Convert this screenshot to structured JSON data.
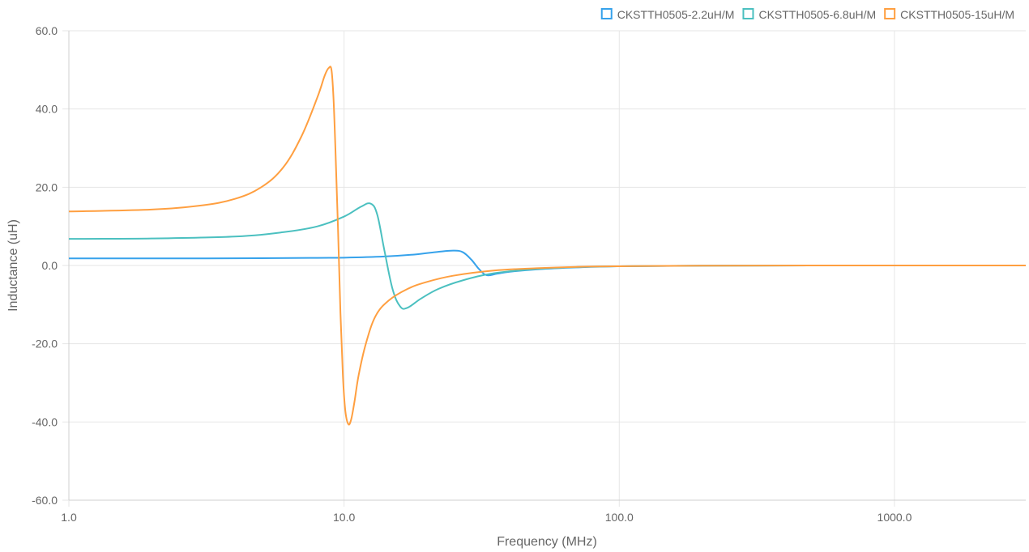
{
  "chart_data": {
    "type": "line",
    "xlabel": "Frequency (MHz)",
    "ylabel": "Inductance (uH)",
    "x_scale": "log",
    "xlim": [
      1,
      3000
    ],
    "ylim": [
      -60,
      60
    ],
    "x_ticks": [
      "1.0",
      "10.0",
      "100.0",
      "1000.0"
    ],
    "x_tick_values": [
      1,
      10,
      100,
      1000
    ],
    "y_ticks": [
      "60.0",
      "40.0",
      "20.0",
      "0.0",
      "-20.0",
      "-40.0",
      "-60.0"
    ],
    "y_tick_values": [
      60,
      40,
      20,
      0,
      -20,
      -40,
      -60
    ],
    "grid": true,
    "legend_position": "top-right",
    "series": [
      {
        "name": "CKSTTH0505-2.2uH/M",
        "color": "#36a2eb",
        "x": [
          1,
          2,
          5,
          8,
          10,
          14,
          18,
          22,
          25,
          27,
          29,
          31,
          33,
          36,
          40,
          50,
          70,
          100,
          200,
          500,
          1000,
          3000
        ],
        "y": [
          1.8,
          1.8,
          1.85,
          1.95,
          2.0,
          2.3,
          2.8,
          3.5,
          3.8,
          3.4,
          1.5,
          -1.0,
          -2.5,
          -2.1,
          -1.6,
          -1.0,
          -0.5,
          -0.2,
          -0.05,
          0.0,
          0.0,
          0.0
        ]
      },
      {
        "name": "CKSTTH0505-6.8uH/M",
        "color": "#4bc0c0",
        "x": [
          1,
          2,
          4,
          6,
          8,
          10,
          11.5,
          12.5,
          13.2,
          14,
          15,
          16,
          17,
          19,
          22,
          27,
          35,
          50,
          70,
          100,
          200,
          1000,
          3000
        ],
        "y": [
          6.8,
          6.9,
          7.4,
          8.5,
          10.0,
          12.5,
          15.0,
          15.8,
          13.0,
          4.0,
          -6.0,
          -10.5,
          -10.8,
          -8.5,
          -6.0,
          -3.8,
          -2.0,
          -0.9,
          -0.4,
          -0.2,
          -0.05,
          0.0,
          0.0
        ]
      },
      {
        "name": "CKSTTH0505-15uH/M",
        "color": "#ff9f40",
        "x": [
          1,
          2,
          3,
          4,
          5,
          6,
          7,
          8,
          8.5,
          8.8,
          9.0,
          9.15,
          9.3,
          9.5,
          9.7,
          9.9,
          10.1,
          10.35,
          10.6,
          10.9,
          11.3,
          12,
          13,
          14.5,
          17,
          20,
          25,
          35,
          50,
          70,
          100,
          200,
          1000,
          3000
        ],
        "y": [
          13.8,
          14.3,
          15.3,
          17.0,
          20.0,
          25.0,
          33.0,
          43.0,
          48.5,
          50.5,
          50.0,
          43.0,
          30.0,
          10.0,
          -12.0,
          -28.0,
          -37.0,
          -40.5,
          -39.5,
          -35.0,
          -28.0,
          -20.0,
          -13.0,
          -9.0,
          -6.0,
          -4.2,
          -2.6,
          -1.3,
          -0.7,
          -0.35,
          -0.2,
          -0.05,
          0.0,
          0.0
        ]
      }
    ]
  }
}
